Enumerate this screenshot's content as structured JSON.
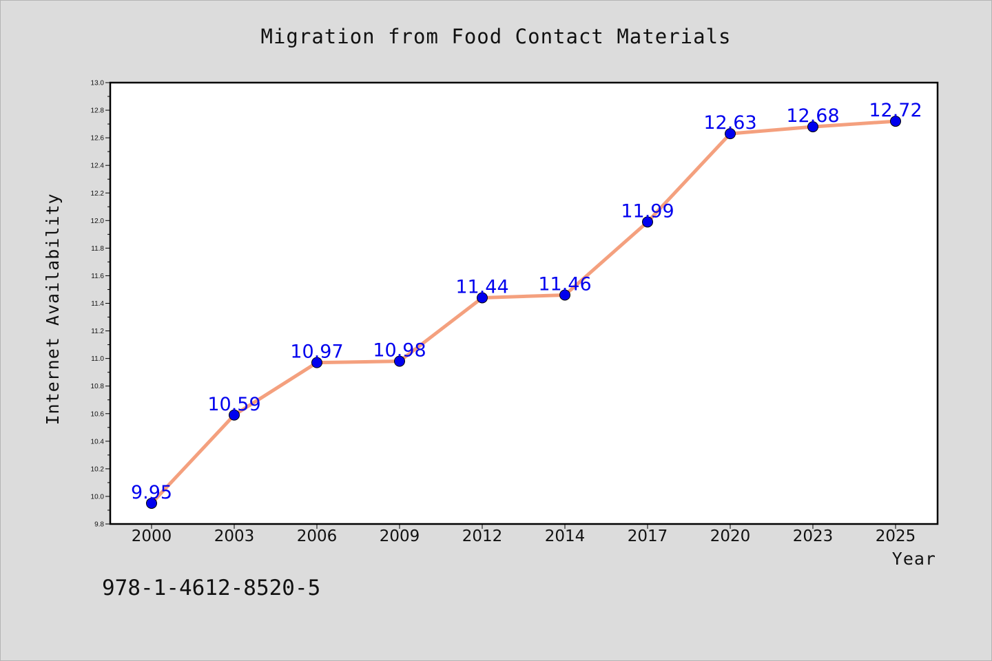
{
  "chart_data": {
    "type": "line",
    "title": "Migration from Food Contact Materials",
    "xlabel": "Year",
    "ylabel": "Internet Availability",
    "categories": [
      "2000",
      "2003",
      "2006",
      "2009",
      "2012",
      "2014",
      "2017",
      "2020",
      "2023",
      "2025"
    ],
    "series": [
      {
        "values": [
          9.95,
          10.59,
          10.97,
          10.98,
          11.44,
          11.46,
          11.99,
          12.63,
          12.68,
          12.72
        ]
      }
    ],
    "data_labels": [
      "9.95",
      "10.59",
      "10.97",
      "10.98",
      "11.44",
      "11.46",
      "11.99",
      "12.63",
      "12.68",
      "12.72"
    ],
    "ylim": [
      9.8,
      13.0
    ],
    "yticks": [
      "9.8",
      "10.0",
      "10.2",
      "10.4",
      "10.6",
      "10.8",
      "11.0",
      "11.2",
      "11.4",
      "11.6",
      "11.8",
      "12.0",
      "12.2",
      "12.4",
      "12.6",
      "12.8",
      "13.0"
    ],
    "grid": false,
    "line_color": "#f4a07e",
    "marker_color": "#0000ee",
    "label_color": "#0000ee",
    "plot_background": "#ffffff",
    "figure_background": "#dcdcdc"
  },
  "footnote": "978-1-4612-8520-5"
}
